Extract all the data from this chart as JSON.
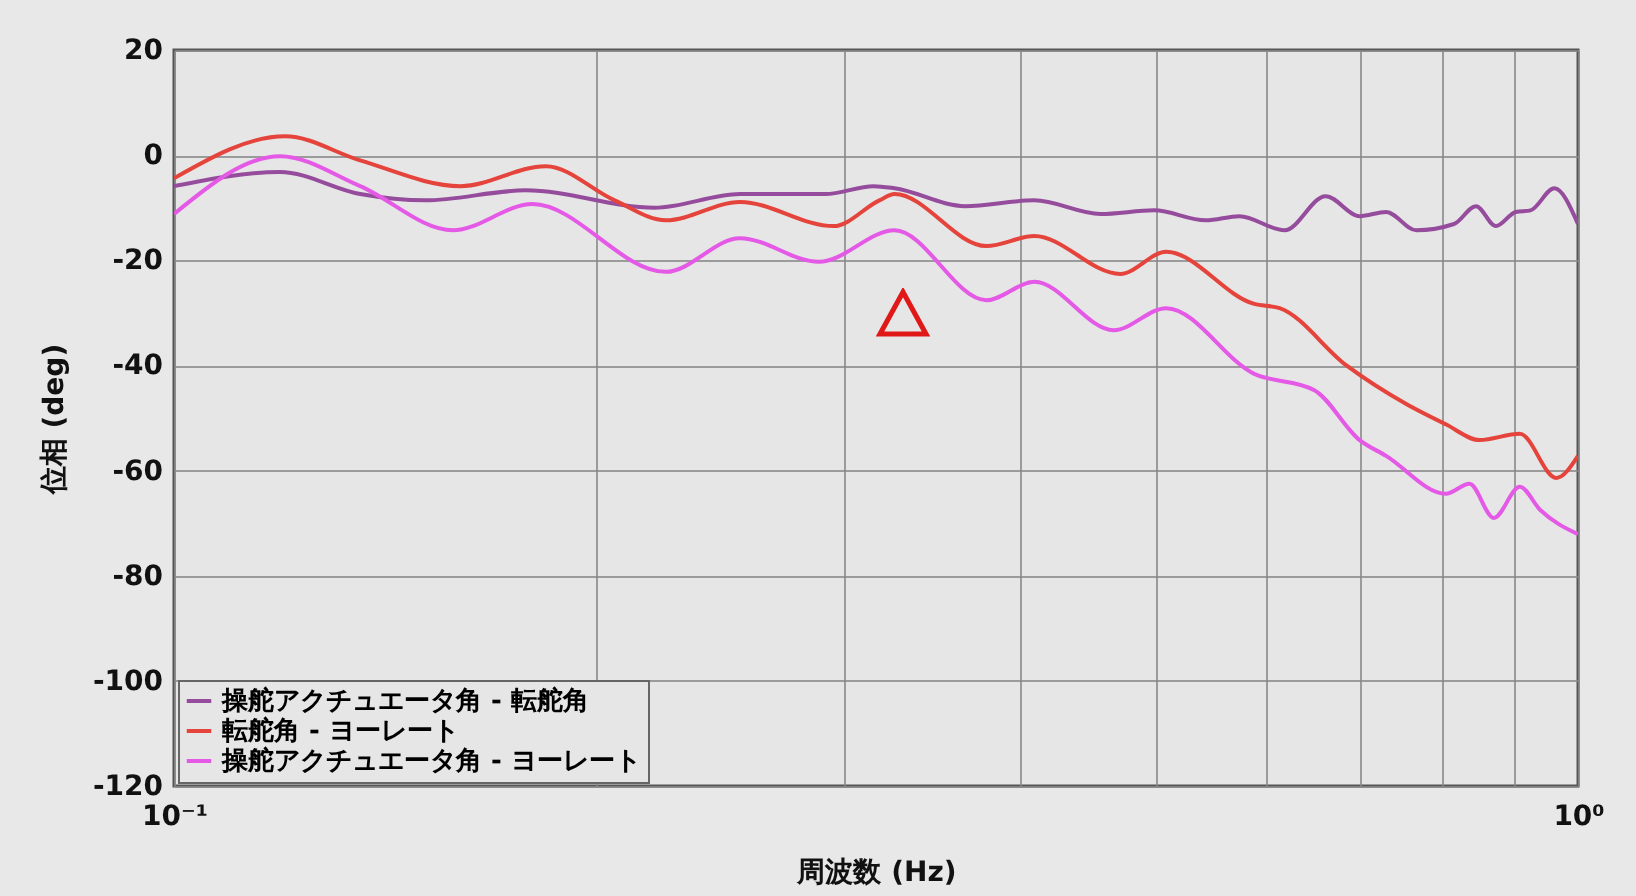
{
  "chart_data": {
    "type": "line",
    "xlabel": "周波数 (Hz)",
    "ylabel": "位相 (deg)",
    "log": "x",
    "xlim": [
      0.1,
      1
    ],
    "ylim": [
      -120,
      20
    ],
    "xticks": [
      {
        "value": 0.1,
        "label": "10⁻¹"
      },
      {
        "value": 0.2,
        "label": null
      },
      {
        "value": 0.3,
        "label": null
      },
      {
        "value": 0.4,
        "label": null
      },
      {
        "value": 0.5,
        "label": null
      },
      {
        "value": 0.6,
        "label": null
      },
      {
        "value": 0.7,
        "label": null
      },
      {
        "value": 0.8,
        "label": null
      },
      {
        "value": 0.9,
        "label": null
      },
      {
        "value": 1,
        "label": "10⁰"
      }
    ],
    "yticks": [
      -120,
      -100,
      -80,
      -60,
      -40,
      -20,
      0,
      20
    ],
    "grid": true,
    "legend": "bottom left",
    "series": [
      {
        "name": "操舵アクチュエータ角 - 転舵角",
        "color": "#964c9c",
        "x": [
          0.1,
          0.119,
          0.1357,
          0.151,
          0.178,
          0.22,
          0.253,
          0.291,
          0.315,
          0.326,
          0.366,
          0.41,
          0.457,
          0.499,
          0.543,
          0.574,
          0.618,
          0.661,
          0.699,
          0.73,
          0.767,
          0.816,
          0.846,
          0.874,
          0.903,
          0.925,
          0.962,
          1.0
        ],
        "values": [
          -5.9,
          -3.2,
          -7.4,
          -8.6,
          -6.7,
          -10,
          -7.4,
          -7.4,
          -5.9,
          -6.3,
          -9.7,
          -8.6,
          -11.2,
          -10.5,
          -12.4,
          -11.6,
          -14.3,
          -7.8,
          -11.6,
          -10.8,
          -14.3,
          -13.1,
          -9.7,
          -13.5,
          -10.8,
          -10.5,
          -6.3,
          -13.1
        ]
      },
      {
        "name": "転舵角 - ヨーレート",
        "color": "#e5443c",
        "x": [
          0.1,
          0.12,
          0.1357,
          0.16,
          0.184,
          0.206,
          0.224,
          0.253,
          0.295,
          0.318,
          0.326,
          0.379,
          0.41,
          0.472,
          0.509,
          0.588,
          0.613,
          0.684,
          0.754,
          0.805,
          0.851,
          0.909,
          0.965,
          1.0
        ],
        "values": [
          -4.4,
          3.6,
          -1,
          -5.9,
          -2.1,
          -8.6,
          -12.4,
          -8.9,
          -13.5,
          -8.6,
          -7.4,
          -17.3,
          -15.4,
          -22.6,
          -18.4,
          -28.3,
          -29.1,
          -40,
          -47.3,
          -51.2,
          -54.2,
          -53,
          -61.4,
          -57.2
        ]
      },
      {
        "name": "操舵アクチュエータ角 - ヨーレート",
        "color": "#e459e6",
        "x": [
          0.1,
          0.119,
          0.1357,
          0.158,
          0.18,
          0.224,
          0.253,
          0.288,
          0.326,
          0.379,
          0.41,
          0.467,
          0.509,
          0.588,
          0.649,
          0.699,
          0.73,
          0.805,
          0.837,
          0.871,
          0.909,
          0.94,
          1.0
        ],
        "values": [
          -11.2,
          -0.2,
          -5.9,
          -14.3,
          -9.3,
          -22.2,
          -15.8,
          -20.3,
          -14.3,
          -27.6,
          -24.1,
          -33.3,
          -29.1,
          -41.6,
          -44.7,
          -54.2,
          -57.2,
          -64.4,
          -62.5,
          -69,
          -63.1,
          -67.5,
          -72.1
        ]
      }
    ]
  }
}
